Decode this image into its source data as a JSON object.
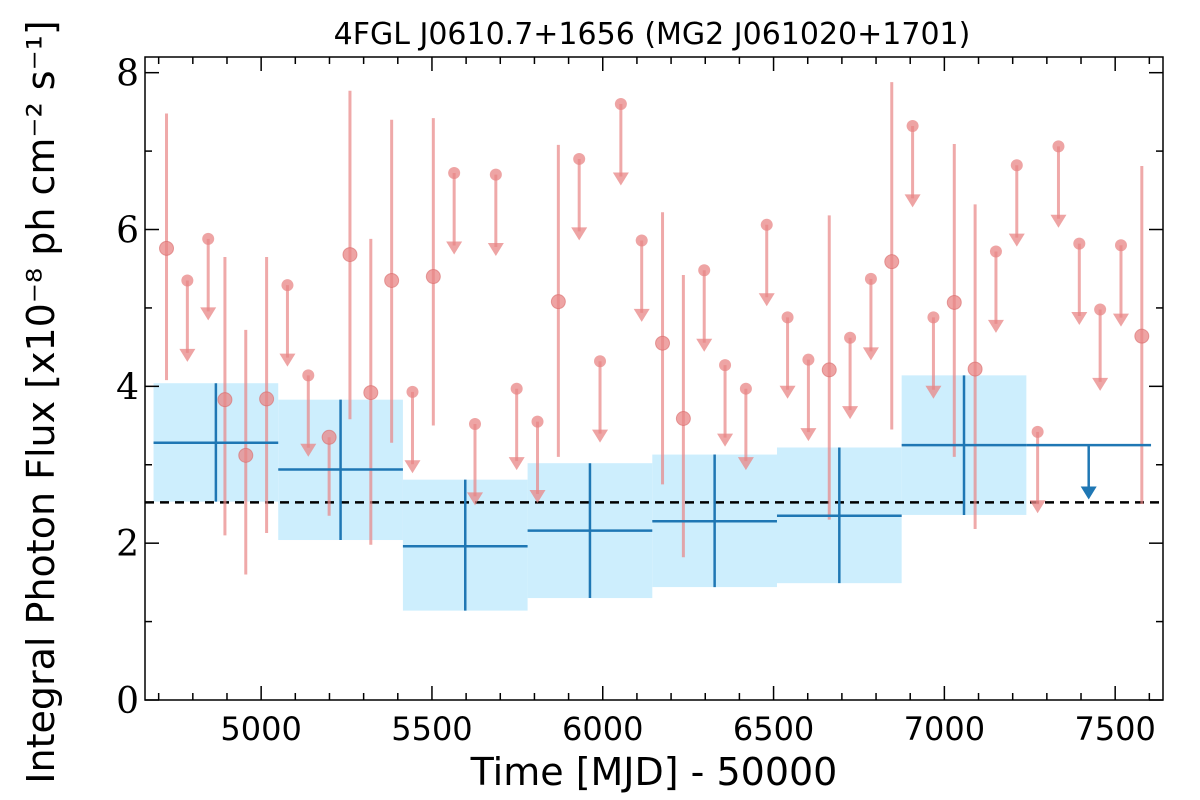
{
  "chart_data": {
    "type": "scatter",
    "title": "4FGL J0610.7+1656 (MG2 J061020+1701)",
    "xlabel": "Time [MJD] - 50000",
    "ylabel": "Integral Photon Flux [x10⁻⁸ ph cm⁻² s⁻¹]",
    "xlim": [
      4660,
      7640
    ],
    "ylim": [
      0,
      8.2
    ],
    "xticks": [
      5000,
      5500,
      6000,
      6500,
      7000,
      7500
    ],
    "yticks": [
      0,
      2,
      4,
      6,
      8
    ],
    "mean_flux": 2.52,
    "colors": {
      "short_bins": "#e88585",
      "long_bins": "#1f77b4",
      "long_band": "#cdeefd",
      "mean_line": "#000000"
    },
    "short_bins": {
      "detections": [
        {
          "x": 4723,
          "y": 5.76,
          "lo": 4.08,
          "hi": 7.48
        },
        {
          "x": 4894,
          "y": 3.83,
          "lo": 2.1,
          "hi": 5.65
        },
        {
          "x": 4955,
          "y": 3.12,
          "lo": 1.6,
          "hi": 4.72
        },
        {
          "x": 5016,
          "y": 3.84,
          "lo": 2.13,
          "hi": 5.65
        },
        {
          "x": 5199,
          "y": 3.35,
          "lo": 2.35,
          "hi": 3.35
        },
        {
          "x": 5260,
          "y": 5.68,
          "lo": 3.58,
          "hi": 7.77
        },
        {
          "x": 5321,
          "y": 3.92,
          "lo": 1.98,
          "hi": 5.88
        },
        {
          "x": 5382,
          "y": 5.35,
          "lo": 3.28,
          "hi": 7.4
        },
        {
          "x": 5504,
          "y": 5.4,
          "lo": 3.5,
          "hi": 7.42
        },
        {
          "x": 5870,
          "y": 5.08,
          "lo": 3.1,
          "hi": 7.08
        },
        {
          "x": 6175,
          "y": 4.55,
          "lo": 2.75,
          "hi": 6.22
        },
        {
          "x": 6236,
          "y": 3.59,
          "lo": 1.82,
          "hi": 5.42
        },
        {
          "x": 6663,
          "y": 4.21,
          "lo": 2.3,
          "hi": 6.18
        },
        {
          "x": 6846,
          "y": 5.59,
          "lo": 3.45,
          "hi": 7.88
        },
        {
          "x": 7029,
          "y": 5.07,
          "lo": 3.1,
          "hi": 7.09
        },
        {
          "x": 7090,
          "y": 4.22,
          "lo": 2.18,
          "hi": 6.32
        },
        {
          "x": 7578,
          "y": 4.64,
          "lo": 2.5,
          "hi": 6.81
        }
      ],
      "upper_limits": [
        {
          "x": 4784,
          "y": 5.35,
          "y_end": 4.35
        },
        {
          "x": 4845,
          "y": 5.88,
          "y_end": 4.88
        },
        {
          "x": 5077,
          "y": 5.29,
          "y_end": 4.29
        },
        {
          "x": 5138,
          "y": 4.14,
          "y_end": 3.14
        },
        {
          "x": 5443,
          "y": 3.93,
          "y_end": 2.93
        },
        {
          "x": 5565,
          "y": 6.72,
          "y_end": 5.72
        },
        {
          "x": 5626,
          "y": 3.52,
          "y_end": 2.52
        },
        {
          "x": 5687,
          "y": 6.7,
          "y_end": 5.7
        },
        {
          "x": 5748,
          "y": 3.97,
          "y_end": 2.97
        },
        {
          "x": 5809,
          "y": 3.55,
          "y_end": 2.55
        },
        {
          "x": 5931,
          "y": 6.9,
          "y_end": 5.9
        },
        {
          "x": 5992,
          "y": 4.32,
          "y_end": 3.32
        },
        {
          "x": 6053,
          "y": 7.6,
          "y_end": 6.6
        },
        {
          "x": 6114,
          "y": 5.86,
          "y_end": 4.86
        },
        {
          "x": 6297,
          "y": 5.48,
          "y_end": 4.48
        },
        {
          "x": 6358,
          "y": 4.27,
          "y_end": 3.27
        },
        {
          "x": 6419,
          "y": 3.97,
          "y_end": 2.97
        },
        {
          "x": 6480,
          "y": 6.06,
          "y_end": 5.06
        },
        {
          "x": 6541,
          "y": 4.88,
          "y_end": 3.88
        },
        {
          "x": 6602,
          "y": 4.34,
          "y_end": 3.34
        },
        {
          "x": 6724,
          "y": 4.62,
          "y_end": 3.62
        },
        {
          "x": 6785,
          "y": 5.37,
          "y_end": 4.37
        },
        {
          "x": 6907,
          "y": 7.32,
          "y_end": 6.32
        },
        {
          "x": 6968,
          "y": 4.88,
          "y_end": 3.88
        },
        {
          "x": 7151,
          "y": 5.72,
          "y_end": 4.72
        },
        {
          "x": 7212,
          "y": 6.82,
          "y_end": 5.82
        },
        {
          "x": 7273,
          "y": 3.42,
          "y_end": 2.42
        },
        {
          "x": 7334,
          "y": 7.06,
          "y_end": 6.06
        },
        {
          "x": 7395,
          "y": 5.82,
          "y_end": 4.82
        },
        {
          "x": 7456,
          "y": 4.98,
          "y_end": 3.98
        },
        {
          "x": 7517,
          "y": 5.8,
          "y_end": 4.8
        }
      ]
    },
    "long_bins": {
      "detections": [
        {
          "x0": 4685,
          "x1": 5050,
          "y": 3.28,
          "lo": 2.53,
          "hi": 4.04
        },
        {
          "x0": 5050,
          "x1": 5415,
          "y": 2.94,
          "lo": 2.04,
          "hi": 3.83
        },
        {
          "x0": 5415,
          "x1": 5780,
          "y": 1.96,
          "lo": 1.14,
          "hi": 2.81
        },
        {
          "x0": 5780,
          "x1": 6145,
          "y": 2.16,
          "lo": 1.3,
          "hi": 3.02
        },
        {
          "x0": 6145,
          "x1": 6510,
          "y": 2.28,
          "lo": 1.44,
          "hi": 3.13
        },
        {
          "x0": 6510,
          "x1": 6875,
          "y": 2.35,
          "lo": 1.49,
          "hi": 3.22
        },
        {
          "x0": 6875,
          "x1": 7240,
          "y": 3.25,
          "lo": 2.36,
          "hi": 4.14
        }
      ],
      "upper_limits": [
        {
          "x0": 7240,
          "x1": 7605,
          "y": 3.25,
          "y_end": 2.62
        }
      ]
    }
  }
}
